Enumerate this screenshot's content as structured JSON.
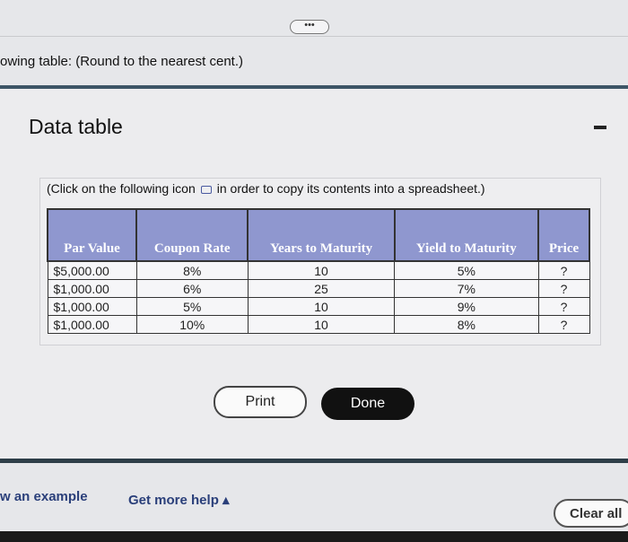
{
  "header": {
    "more_label": "•••",
    "instruction": "owing table: (Round to the nearest cent.)"
  },
  "dialog": {
    "title": "Data table",
    "copy_prefix": "(Click on the following icon",
    "copy_suffix": "in order to copy its contents into a spreadsheet.)",
    "table": {
      "headers": [
        "Par Value",
        "Coupon Rate",
        "Years to Maturity",
        "Yield to Maturity",
        "Price"
      ],
      "rows": [
        [
          "$5,000.00",
          "8%",
          "10",
          "5%",
          "?"
        ],
        [
          "$1,000.00",
          "6%",
          "25",
          "7%",
          "?"
        ],
        [
          "$1,000.00",
          "5%",
          "10",
          "9%",
          "?"
        ],
        [
          "$1,000.00",
          "10%",
          "10",
          "8%",
          "?"
        ]
      ]
    },
    "print_label": "Print",
    "done_label": "Done"
  },
  "footer": {
    "example_label": "w an example",
    "help_label": "Get more help ▴",
    "clear_label": "Clear all"
  },
  "colors": {
    "table_header": "#8f97cf",
    "link": "#2a3f7a"
  }
}
